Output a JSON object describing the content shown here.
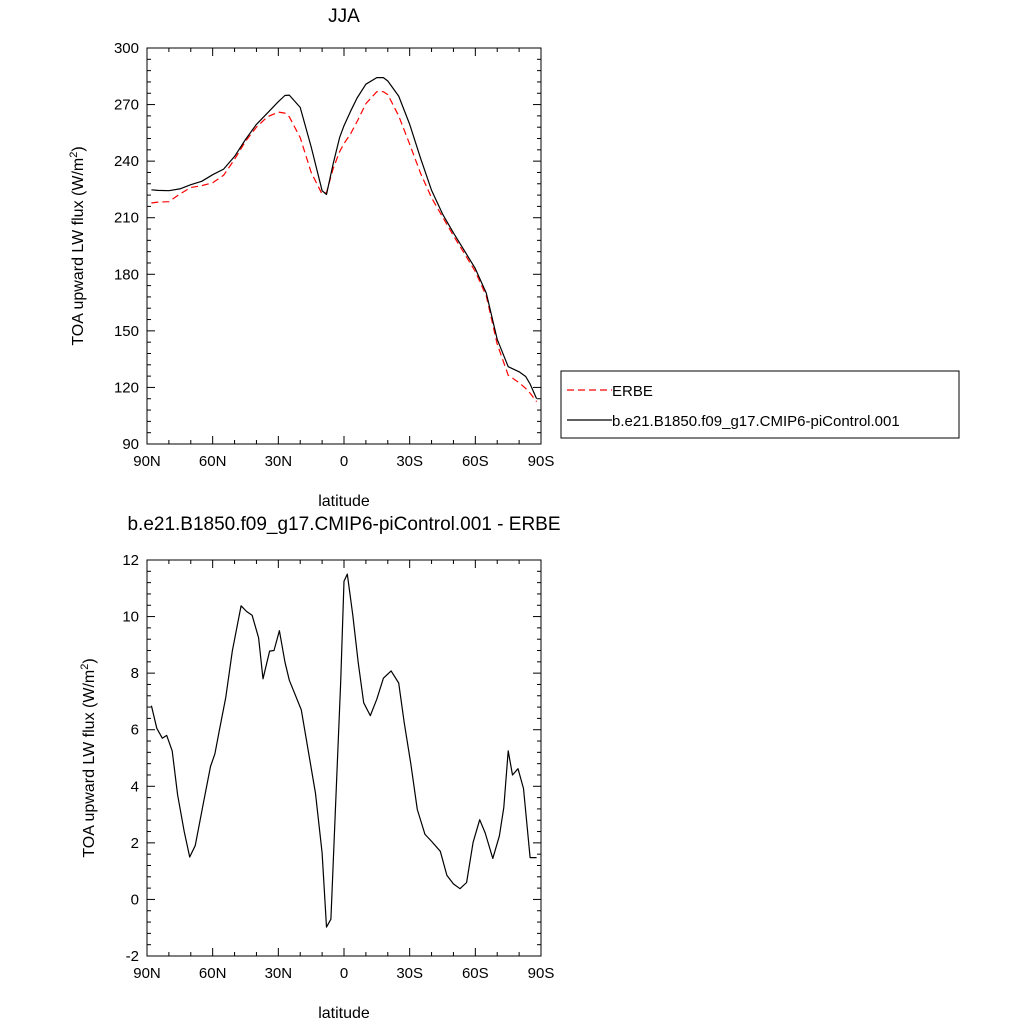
{
  "chart_data": [
    {
      "type": "line",
      "title": "JJA",
      "xlabel": "latitude",
      "ylabel": "TOA upward LW flux (W/m",
      "ylabel_sup": "2",
      "ylabel_end": ")",
      "ylim": [
        90,
        300
      ],
      "yticks": [
        90,
        120,
        150,
        180,
        210,
        240,
        270,
        300
      ],
      "ytick_labels": [
        "90",
        "120",
        "150",
        "180",
        "210",
        "240",
        "270",
        "300"
      ],
      "xlim": [
        90,
        -90
      ],
      "xticks": [
        90,
        60,
        30,
        0,
        -30,
        -60,
        -90
      ],
      "xtick_labels": [
        "90N",
        "60N",
        "30N",
        "0",
        "30S",
        "60S",
        "90S"
      ],
      "legend": {
        "placement": "right",
        "entries": [
          {
            "label": "ERBE",
            "color": "#ff0000",
            "dash": "dashed"
          },
          {
            "label": "b.e21.B1850.f09_g17.CMIP6-piControl.001",
            "color": "#000000",
            "dash": "solid"
          }
        ]
      },
      "x": [
        88,
        85,
        80,
        75,
        70,
        65,
        60,
        55,
        50,
        45,
        40,
        35,
        30,
        27,
        25,
        20,
        15,
        10,
        8,
        5,
        2,
        0,
        -3,
        -6,
        -10,
        -15,
        -18,
        -20,
        -25,
        -30,
        -35,
        -40,
        -45,
        -50,
        -55,
        -60,
        -65,
        -70,
        -75,
        -80,
        -83,
        -85,
        -88
      ],
      "series": [
        {
          "name": "ERBE",
          "color": "#ff0000",
          "dash": "dashed",
          "values": [
            217.8,
            218.3,
            218.5,
            222.5,
            226,
            227,
            228.5,
            232.5,
            241,
            250.5,
            258,
            263.5,
            266,
            265.5,
            263.5,
            252.5,
            234,
            222.5,
            223.3,
            236,
            245,
            249.3,
            254.5,
            261,
            270.5,
            276.8,
            276.8,
            275.3,
            264,
            249,
            233.5,
            220.5,
            210.5,
            200.5,
            191,
            181.5,
            168.5,
            143,
            126.5,
            122.5,
            119.5,
            117,
            112.5
          ]
        },
        {
          "name": "b.e21.B1850.f09_g17.CMIP6-piControl.001",
          "color": "#000000",
          "dash": "solid",
          "values": [
            224.8,
            224.5,
            224.3,
            225.3,
            227.5,
            229.3,
            232.8,
            235.8,
            242.5,
            251.5,
            259.5,
            265.5,
            271.5,
            274.8,
            275,
            268.5,
            247.5,
            224.3,
            222.3,
            238.5,
            252.5,
            258.8,
            266.5,
            273.5,
            280.8,
            284.3,
            284.3,
            282.5,
            274.5,
            259.5,
            241.5,
            224.5,
            212,
            202,
            192.5,
            183,
            170,
            145.5,
            131,
            128.3,
            125.8,
            121.8,
            114
          ]
        }
      ]
    },
    {
      "type": "line",
      "title": "b.e21.B1850.f09_g17.CMIP6-piControl.001 - ERBE",
      "xlabel": "latitude",
      "ylabel": "TOA upward LW flux (W/m",
      "ylabel_sup": "2",
      "ylabel_end": ")",
      "ylim": [
        -2,
        12
      ],
      "yticks": [
        -2,
        0,
        2,
        4,
        6,
        8,
        10,
        12
      ],
      "ytick_labels": [
        "-2",
        "0",
        "2",
        "4",
        "6",
        "8",
        "10",
        "12"
      ],
      "xlim": [
        90,
        -90
      ],
      "xticks": [
        90,
        60,
        30,
        0,
        -30,
        -60,
        -90
      ],
      "xtick_labels": [
        "90N",
        "60N",
        "30N",
        "0",
        "30S",
        "60S",
        "90S"
      ],
      "x": [
        88,
        85.5,
        83,
        81,
        78.5,
        76,
        73,
        70.5,
        68,
        64,
        61,
        59,
        57,
        54,
        51,
        47,
        44.5,
        42,
        39,
        37,
        34,
        32,
        29.5,
        27,
        25,
        19.5,
        13,
        10,
        8,
        6,
        4,
        1.5,
        0,
        -1.5,
        -4,
        -6.5,
        -9,
        -12,
        -15,
        -18,
        -21.5,
        -25,
        -27.5,
        -30.5,
        -33.5,
        -37,
        -40,
        -44,
        -47,
        -50,
        -53,
        -56,
        -59,
        -62,
        -64.5,
        -68,
        -71,
        -73,
        -75,
        -77,
        -79.5,
        -82,
        -85,
        -88
      ],
      "series": [
        {
          "name": "b.e21.B1850.f09_g17.CMIP6-piControl.001 - ERBE",
          "color": "#000000",
          "dash": "solid",
          "values": [
            6.85,
            6.05,
            5.7,
            5.8,
            5.25,
            3.7,
            2.4,
            1.5,
            1.9,
            3.5,
            4.7,
            5.15,
            5.95,
            7.15,
            8.8,
            10.38,
            10.18,
            10.05,
            9.25,
            7.8,
            8.78,
            8.8,
            9.5,
            8.4,
            7.75,
            6.7,
            3.75,
            1.65,
            -0.98,
            -0.7,
            3.0,
            7.7,
            11.25,
            11.5,
            10.05,
            8.38,
            6.95,
            6.5,
            7.08,
            7.82,
            8.08,
            7.65,
            6.25,
            4.8,
            3.18,
            2.3,
            2.05,
            1.7,
            0.85,
            0.55,
            0.38,
            0.6,
            2.02,
            2.82,
            2.35,
            1.45,
            2.25,
            3.25,
            5.25,
            4.4,
            4.62,
            3.92,
            1.48,
            1.48
          ]
        }
      ]
    }
  ]
}
